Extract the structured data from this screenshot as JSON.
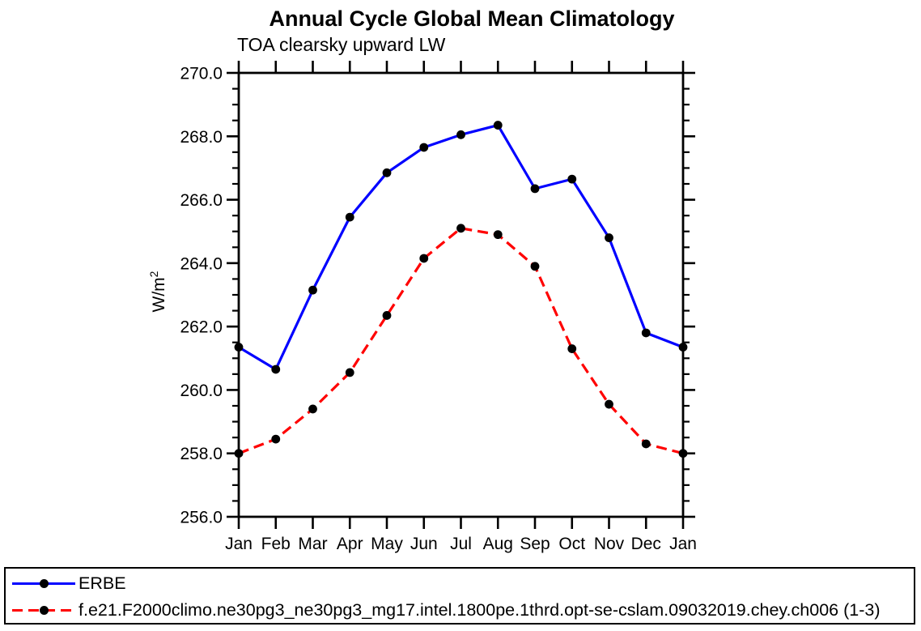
{
  "page": {
    "background": "#ffffff",
    "ylabel_base": "W/m",
    "ylabel_sup": "2"
  },
  "chart_data": {
    "type": "line",
    "title": "Annual Cycle Global Mean Climatology",
    "subtitle": "TOA clearsky upward LW",
    "ylabel": "W/m^2",
    "categories": [
      "Jan",
      "Feb",
      "Mar",
      "Apr",
      "May",
      "Jun",
      "Jul",
      "Aug",
      "Sep",
      "Oct",
      "Nov",
      "Dec",
      "Jan"
    ],
    "ylim": [
      256.0,
      270.0
    ],
    "y_major_step": 2.0,
    "y_minor_step": 0.5,
    "y_major_tick_labels": [
      "256.0",
      "258.0",
      "260.0",
      "262.0",
      "264.0",
      "266.0",
      "268.0",
      "270.0"
    ],
    "grid": false,
    "axis_color": "#000000",
    "marker": "filled-circle",
    "marker_color": "#000000",
    "legend_position": "bottom-left-box",
    "series": [
      {
        "name": "ERBE",
        "color": "#0000ff",
        "line_style": "solid",
        "values": [
          261.35,
          260.65,
          263.15,
          265.45,
          266.85,
          267.65,
          268.05,
          268.35,
          266.35,
          266.65,
          264.8,
          261.8,
          261.35
        ]
      },
      {
        "name": "f.e21.F2000climo.ne30pg3_ne30pg3_mg17.intel.1800pe.1thrd.opt-se-cslam.09032019.chey.ch006 (1-3)",
        "color": "#ff0000",
        "line_style": "dashed",
        "values": [
          258.0,
          258.45,
          259.4,
          260.55,
          262.35,
          264.15,
          265.1,
          264.9,
          263.9,
          261.3,
          259.55,
          258.3,
          258.0
        ]
      }
    ]
  }
}
